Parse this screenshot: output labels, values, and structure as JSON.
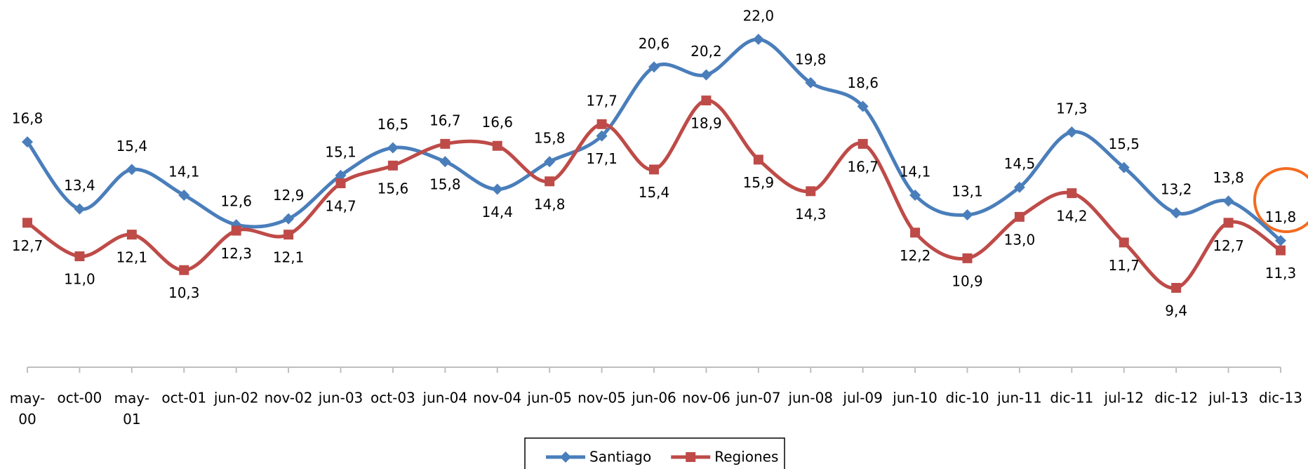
{
  "chart_data": {
    "type": "line",
    "categories": [
      "may- 00",
      "oct-00",
      "may- 01",
      "oct-01",
      "jun-02",
      "nov-02",
      "jun-03",
      "oct-03",
      "jun-04",
      "nov-04",
      "jun-05",
      "nov-05",
      "jun-06",
      "nov-06",
      "jun-07",
      "jun-08",
      "jul-09",
      "jun-10",
      "dic-10",
      "jun-11",
      "dic-11",
      "jul-12",
      "dic-12",
      "jul-13",
      "dic-13"
    ],
    "series": [
      {
        "name": "Santiago",
        "color": "#4a7ebb",
        "values": [
          16.8,
          13.4,
          15.4,
          14.1,
          12.6,
          12.9,
          15.1,
          16.5,
          15.8,
          14.4,
          15.8,
          17.1,
          20.6,
          20.2,
          22.0,
          19.8,
          18.6,
          14.1,
          13.1,
          14.5,
          17.3,
          15.5,
          13.2,
          13.8,
          11.8
        ],
        "value_labels": [
          "16,8",
          "13,4",
          "15,4",
          "14,1",
          "12,6",
          "12,9",
          "15,1",
          "16,5",
          "15,8",
          "14,4",
          "15,8",
          "17,1",
          "20,6",
          "20,2",
          "22,0",
          "19,8",
          "18,6",
          "14,1",
          "13,1",
          "14,5",
          "17,3",
          "15,5",
          "13,2",
          "13,8",
          "11,8"
        ]
      },
      {
        "name": "Regiones",
        "color": "#be4b48",
        "values": [
          12.7,
          11.0,
          12.1,
          10.3,
          12.3,
          12.1,
          14.7,
          15.6,
          16.7,
          16.6,
          14.8,
          17.7,
          15.4,
          18.9,
          15.9,
          14.3,
          16.7,
          12.2,
          10.9,
          13.0,
          14.2,
          11.7,
          9.4,
          12.7,
          11.3
        ],
        "value_labels": [
          "12,7",
          "11,0",
          "12,1",
          "10,3",
          "12,3",
          "12,1",
          "14,7",
          "15,6",
          "16,7",
          "16,6",
          "14,8",
          "17,7",
          "15,4",
          "18,9",
          "15,9",
          "14,3",
          "16,7",
          "12,2",
          "10,9",
          "13,0",
          "14,2",
          "11,7",
          "9,4",
          "12,7",
          "11,3"
        ]
      }
    ],
    "legend": "bottom"
  }
}
